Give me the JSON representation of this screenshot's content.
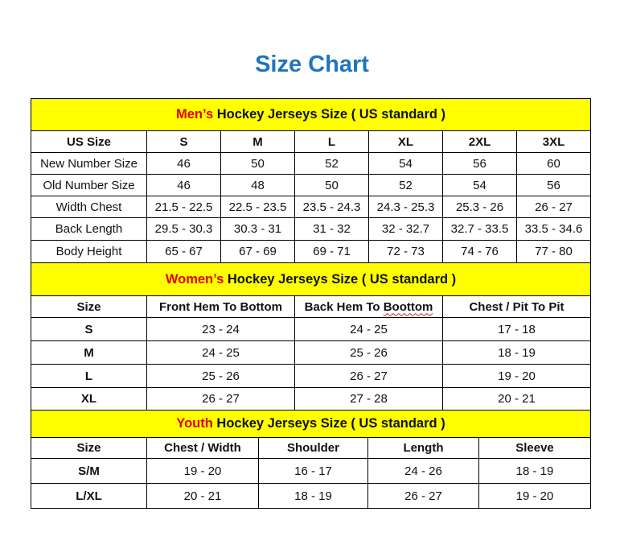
{
  "title": "Size Chart",
  "accent_color": "#1f74c0",
  "band_color": "#ffff00",
  "highlight_color": "#e00000",
  "sections": [
    {
      "id": "men",
      "band_highlight": "Men’s",
      "band_rest": " Hockey Jerseys Size ( US standard )",
      "headers": [
        "US Size",
        "S",
        "M",
        "L",
        "XL",
        "2XL",
        "3XL"
      ],
      "rows": [
        [
          "New Number Size",
          "46",
          "50",
          "52",
          "54",
          "56",
          "60"
        ],
        [
          "Old Number Size",
          "46",
          "48",
          "50",
          "52",
          "54",
          "56"
        ],
        [
          "Width Chest",
          "21.5 - 22.5",
          "22.5 - 23.5",
          "23.5 - 24.3",
          "24.3 - 25.3",
          "25.3 - 26",
          "26 - 27"
        ],
        [
          "Back Length",
          "29.5 - 30.3",
          "30.3 - 31",
          "31 - 32",
          "32 - 32.7",
          "32.7 - 33.5",
          "33.5 - 34.6"
        ],
        [
          "Body Height",
          "65 - 67",
          "67 - 69",
          "69 - 71",
          "72 - 73",
          "74 - 76",
          "77 - 80"
        ]
      ]
    },
    {
      "id": "women",
      "band_highlight": "Women’s",
      "band_rest": " Hockey Jerseys Size ( US standard )",
      "headers": [
        "Size",
        "Front Hem To Bottom",
        "Back Hem To Boottom",
        "Chest / Pit To Pit"
      ],
      "rows": [
        [
          "S",
          "23 - 24",
          "24 - 25",
          "17 - 18"
        ],
        [
          "M",
          "24 - 25",
          "25 - 26",
          "18 - 19"
        ],
        [
          "L",
          "25 - 26",
          "26 - 27",
          "19 - 20"
        ],
        [
          "XL",
          "26 - 27",
          "27 - 28",
          "20 - 21"
        ]
      ]
    },
    {
      "id": "youth",
      "band_highlight": "Youth",
      "band_rest": " Hockey Jerseys Size ( US standard )",
      "headers": [
        "Size",
        "Chest / Width",
        "Shoulder",
        "Length",
        "Sleeve"
      ],
      "rows": [
        [
          "S/M",
          "19 - 20",
          "16 - 17",
          "24 - 26",
          "18 - 19"
        ],
        [
          "L/XL",
          "20 - 21",
          "18 - 19",
          "26 - 27",
          "19 - 20"
        ]
      ]
    }
  ]
}
